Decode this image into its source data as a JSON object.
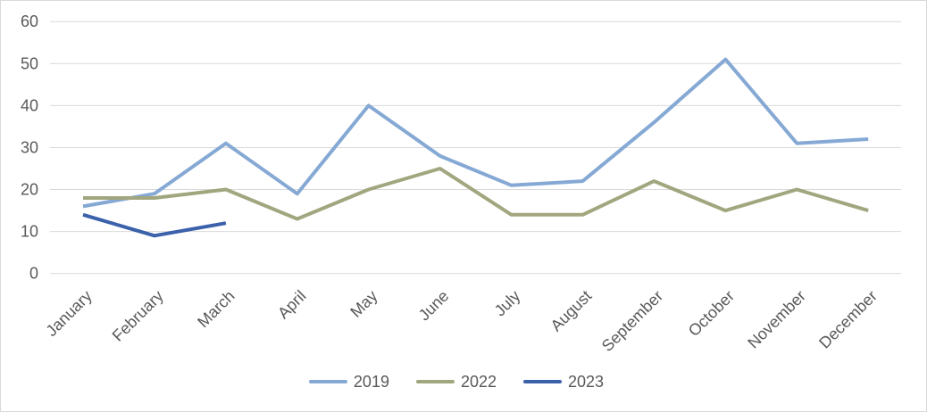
{
  "chart_data": {
    "type": "line",
    "title": "",
    "xlabel": "",
    "ylabel": "",
    "categories": [
      "January",
      "February",
      "March",
      "April",
      "May",
      "June",
      "July",
      "August",
      "September",
      "October",
      "November",
      "December"
    ],
    "series": [
      {
        "name": "2019",
        "color": "#85A9D4",
        "values": [
          16,
          19,
          31,
          19,
          40,
          28,
          21,
          22,
          36,
          51,
          31,
          32
        ]
      },
      {
        "name": "2022",
        "color": "#A2A67E",
        "values": [
          18,
          18,
          20,
          13,
          20,
          25,
          14,
          14,
          22,
          15,
          20,
          15
        ]
      },
      {
        "name": "2023",
        "color": "#3B61AB",
        "values": [
          14,
          9,
          12,
          null,
          null,
          null,
          null,
          null,
          null,
          null,
          null,
          null
        ]
      }
    ],
    "ylim": [
      0,
      60
    ],
    "yticks": [
      0,
      10,
      20,
      30,
      40,
      50,
      60
    ],
    "grid": true,
    "legend_position": "bottom-center"
  },
  "colors": {
    "background": "#FFFFFF",
    "border": "#D9D9D9",
    "gridline": "#D9D9D9",
    "axis_text": "#595959"
  }
}
